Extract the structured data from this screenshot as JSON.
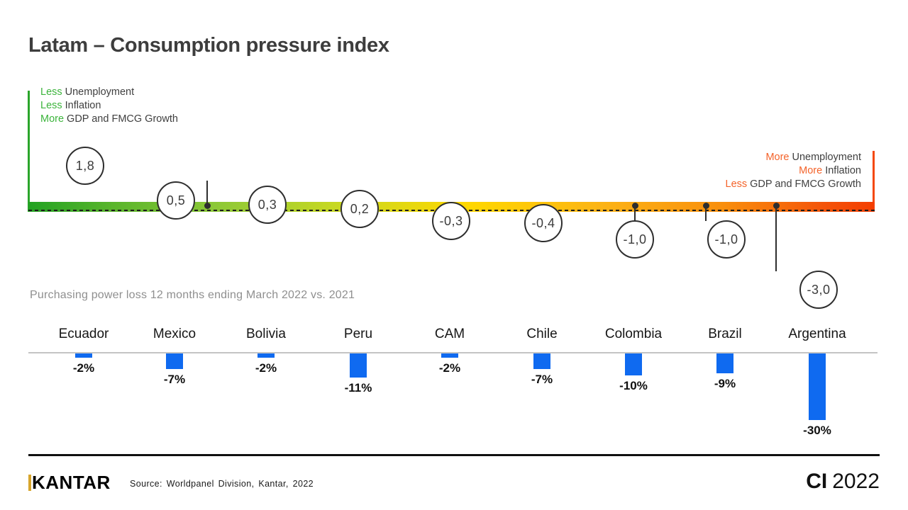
{
  "title": "Latam – Consumption pressure index",
  "legend_left": {
    "lines": [
      {
        "em": "Less",
        "text": "Unemployment"
      },
      {
        "em": "Less",
        "text": "Inflation"
      },
      {
        "em": "More",
        "text": "GDP and FMCG Growth"
      }
    ]
  },
  "legend_right": {
    "lines": [
      {
        "em": "More",
        "text": "Unemployment"
      },
      {
        "em": "More",
        "text": "Inflation"
      },
      {
        "em": "Less",
        "text": "GDP and FMCG Growth"
      }
    ]
  },
  "subtitle": "Purchasing power loss 12 months ending March 2022 vs. 2021",
  "footer": {
    "logo": "KANTAR",
    "source": "Source: Worldpanel Division, Kantar, 2022",
    "program": "CI",
    "year": "2022"
  },
  "colors": {
    "green_accent": "#3cb43c",
    "orange_accent": "#f4632a",
    "axis_green": "#2aa52a",
    "axis_red": "#f4480b",
    "bar_blue": "#0f6af0",
    "scale_gradient": [
      "#22a222",
      "#8cc837",
      "#c6d822",
      "#ffd800",
      "#fcb315",
      "#f98f0c",
      "#f43d00"
    ]
  },
  "chart_data": [
    {
      "type": "scatter",
      "name": "consumption-pressure-index",
      "title": "Latam – Consumption pressure index",
      "categories": [
        "Ecuador",
        "Mexico",
        "Bolivia",
        "Peru",
        "CAM",
        "Chile",
        "Colombia",
        "Brazil",
        "Argentina"
      ],
      "series": [
        {
          "name": "Consumption pressure index",
          "values": [
            1.8,
            0.5,
            0.3,
            0.2,
            -0.3,
            -0.4,
            -1.0,
            -1.0,
            -3.0
          ]
        }
      ],
      "value_labels": [
        "1,8",
        "0,5",
        "0,3",
        "0,2",
        "-0,3",
        "-0,4",
        "-1,0",
        "-1,0",
        "-3,0"
      ],
      "scale": {
        "left_end": "green = positive index",
        "right_end": "red = negative index"
      },
      "legend_left": [
        "Less Unemployment",
        "Less Inflation",
        "More GDP and FMCG Growth"
      ],
      "legend_right": [
        "More Unemployment",
        "More Inflation",
        "Less GDP and FMCG Growth"
      ]
    },
    {
      "type": "bar",
      "name": "purchasing-power-loss",
      "title": "Purchasing power loss 12 months ending March 2022 vs. 2021",
      "categories": [
        "Ecuador",
        "Mexico",
        "Bolivia",
        "Peru",
        "CAM",
        "Chile",
        "Colombia",
        "Brazil",
        "Argentina"
      ],
      "values": [
        -2,
        -7,
        -2,
        -11,
        -2,
        -7,
        -10,
        -9,
        -30
      ],
      "value_labels": [
        "-2%",
        "-7%",
        "-2%",
        "-11%",
        "-2%",
        "-7%",
        "-10%",
        "-9%",
        "-30%"
      ],
      "bar_color": "#0f6af0",
      "baseline": 0,
      "grid": false,
      "legend_position": "none"
    }
  ]
}
